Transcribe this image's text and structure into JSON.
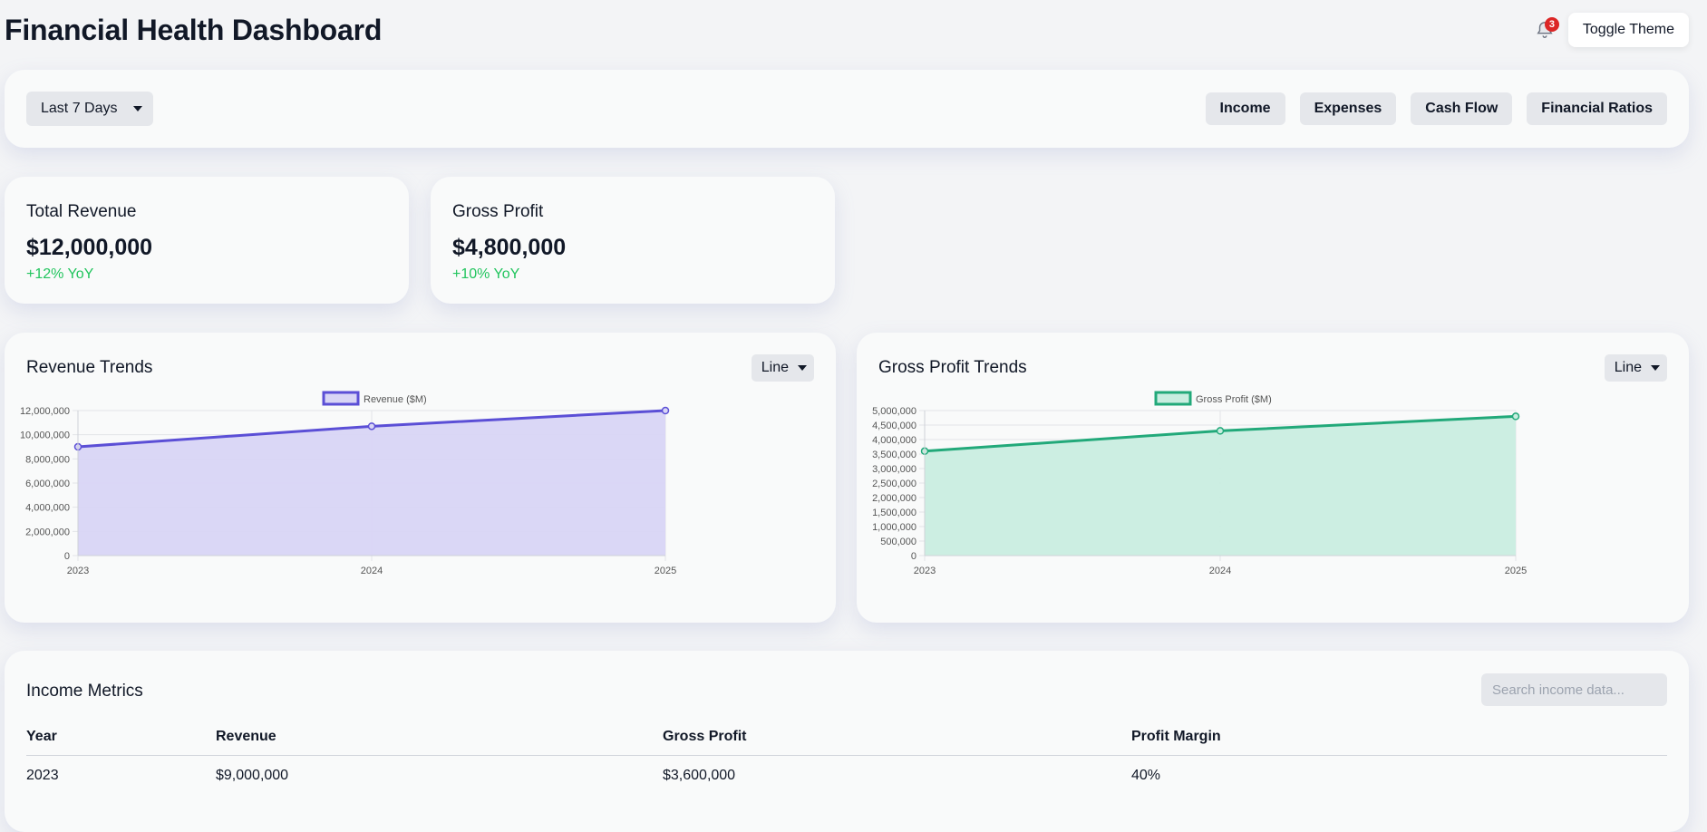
{
  "header": {
    "title": "Financial Health Dashboard",
    "notification_count": "3",
    "toggle_theme_label": "Toggle Theme"
  },
  "filters": {
    "period_selected": "Last 7 Days",
    "tabs": [
      {
        "label": "Income"
      },
      {
        "label": "Expenses"
      },
      {
        "label": "Cash Flow"
      },
      {
        "label": "Financial Ratios"
      }
    ]
  },
  "kpis": [
    {
      "label": "Total Revenue",
      "value": "$12,000,000",
      "change": "+12% YoY"
    },
    {
      "label": "Gross Profit",
      "value": "$4,800,000",
      "change": "+10% YoY"
    }
  ],
  "charts": {
    "revenue": {
      "title": "Revenue Trends",
      "chart_type": "Line"
    },
    "gross_profit": {
      "title": "Gross Profit Trends",
      "chart_type": "Line"
    }
  },
  "chart_data": [
    {
      "type": "area",
      "title": "Revenue Trends",
      "x": [
        "2023",
        "2024",
        "2025"
      ],
      "series": [
        {
          "name": "Revenue ($M)",
          "values": [
            9000000,
            10700000,
            12000000
          ],
          "color": "#5b4fd6",
          "fill": "#d8d5f5"
        }
      ],
      "ylim": [
        0,
        12000000
      ],
      "yticks": [
        0,
        2000000,
        4000000,
        6000000,
        8000000,
        10000000,
        12000000
      ],
      "ytick_labels": [
        "0",
        "2,000,000",
        "4,000,000",
        "6,000,000",
        "8,000,000",
        "10,000,000",
        "12,000,000"
      ],
      "grid": true,
      "legend": "top-center"
    },
    {
      "type": "area",
      "title": "Gross Profit Trends",
      "x": [
        "2023",
        "2024",
        "2025"
      ],
      "series": [
        {
          "name": "Gross Profit ($M)",
          "values": [
            3600000,
            4300000,
            4800000
          ],
          "color": "#22a97a",
          "fill": "#c9ede0"
        }
      ],
      "ylim": [
        0,
        5000000
      ],
      "yticks": [
        0,
        500000,
        1000000,
        1500000,
        2000000,
        2500000,
        3000000,
        3500000,
        4000000,
        4500000,
        5000000
      ],
      "ytick_labels": [
        "0",
        "500,000",
        "1,000,000",
        "1,500,000",
        "2,000,000",
        "2,500,000",
        "3,000,000",
        "3,500,000",
        "4,000,000",
        "4,500,000",
        "5,000,000"
      ],
      "grid": true,
      "legend": "top-center"
    }
  ],
  "income_table": {
    "title": "Income Metrics",
    "search_placeholder": "Search income data...",
    "columns": [
      "Year",
      "Revenue",
      "Gross Profit",
      "Profit Margin"
    ],
    "rows": [
      [
        "2023",
        "$9,000,000",
        "$3,600,000",
        "40%"
      ]
    ]
  }
}
